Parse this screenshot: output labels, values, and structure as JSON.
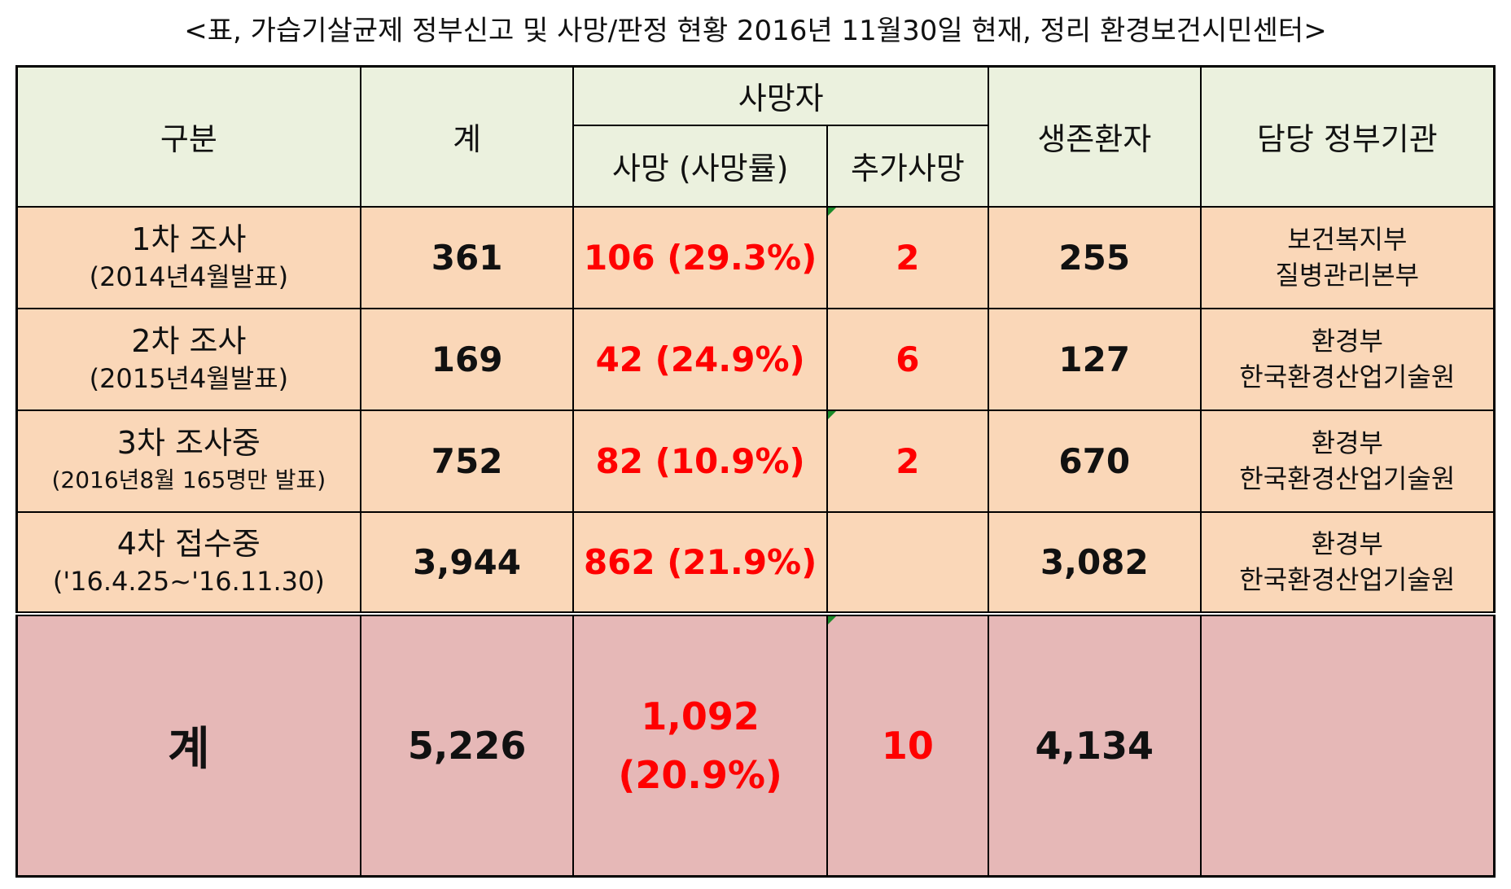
{
  "caption": "<표, 가습기살균제 정부신고 및 사망/판정 현황 2016년 11월30일 현재, 정리 환경보건시민센터>",
  "header": {
    "category": "구분",
    "total": "계",
    "deaths_group": "사망자",
    "deaths": "사망 (사망률)",
    "additional_deaths": "추가사망",
    "survivors": "생존환자",
    "agency": "담당 정부기관"
  },
  "rows": [
    {
      "label": "1차 조사",
      "sublabel": "(2014년4월발표)",
      "total": "361",
      "deaths": "106 (29.3%)",
      "additional": "2",
      "survivors": "255",
      "agency_line1": "보건복지부",
      "agency_line2": "질병관리본부"
    },
    {
      "label": "2차 조사",
      "sublabel": "(2015년4월발표)",
      "total": "169",
      "deaths": "42 (24.9%)",
      "additional": "6",
      "survivors": "127",
      "agency_line1": "환경부",
      "agency_line2": "한국환경산업기술원"
    },
    {
      "label": "3차 조사중",
      "sublabel": "(2016년8월 165명만 발표)",
      "total": "752",
      "deaths": "82 (10.9%)",
      "additional": "2",
      "survivors": "670",
      "agency_line1": "환경부",
      "agency_line2": "한국환경산업기술원"
    },
    {
      "label": "4차 접수중",
      "sublabel": "('16.4.25~'16.11.30)",
      "total": "3,944",
      "deaths": "862 (21.9%)",
      "additional": "",
      "survivors": "3,082",
      "agency_line1": "환경부",
      "agency_line2": "한국환경산업기술원"
    }
  ],
  "total_row": {
    "label": "계",
    "total": "5,226",
    "deaths_line1": "1,092",
    "deaths_line2": "(20.9%)",
    "additional": "10",
    "survivors": "4,134",
    "agency": ""
  },
  "colors": {
    "header_bg": "#ebf1de",
    "row_bg": "#fad7b8",
    "total_bg": "#e6b8b7",
    "death_text": "#ff0000"
  }
}
